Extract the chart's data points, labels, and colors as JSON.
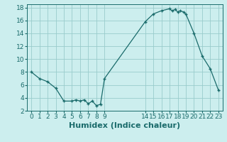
{
  "x": [
    0,
    1,
    2,
    3,
    4,
    5,
    5.5,
    6,
    6.5,
    7,
    7.5,
    8,
    8.5,
    9,
    14,
    15,
    16,
    17,
    17.3,
    17.7,
    18,
    18.3,
    18.7,
    19,
    20,
    21,
    22,
    23
  ],
  "y": [
    8.0,
    7.0,
    6.5,
    5.5,
    3.5,
    3.5,
    3.7,
    3.5,
    3.7,
    3.1,
    3.5,
    2.8,
    3.0,
    7.0,
    15.8,
    17.0,
    17.5,
    17.8,
    17.5,
    17.7,
    17.3,
    17.5,
    17.3,
    17.0,
    14.0,
    10.5,
    8.5,
    5.2
  ],
  "xlabel": "Humidex (Indice chaleur)",
  "xlim": [
    -0.5,
    23.5
  ],
  "ylim": [
    2,
    18.5
  ],
  "xticks": [
    0,
    1,
    2,
    3,
    4,
    5,
    6,
    7,
    8,
    9,
    14,
    15,
    16,
    17,
    18,
    19,
    20,
    21,
    22,
    23
  ],
  "yticks": [
    2,
    4,
    6,
    8,
    10,
    12,
    14,
    16,
    18
  ],
  "line_color": "#1a6b6b",
  "marker": "+",
  "bg_color": "#cceeee",
  "grid_color": "#99cccc",
  "xlabel_fontsize": 8,
  "tick_fontsize": 6.5
}
